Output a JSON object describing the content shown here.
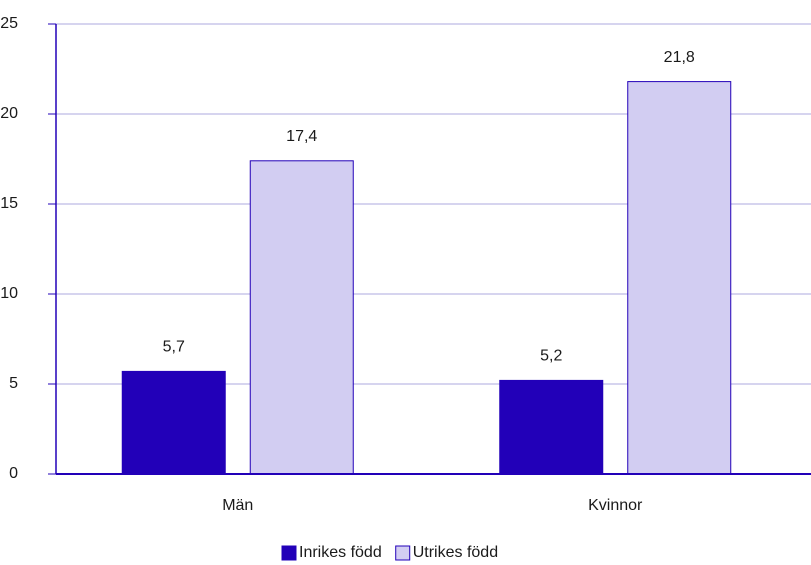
{
  "chart_data": {
    "type": "bar",
    "categories": [
      "Män",
      "Kvinnor"
    ],
    "series": [
      {
        "name": "Inrikes född",
        "color": "#2200b8",
        "values": [
          5.7,
          5.2
        ],
        "value_labels": [
          "5,7",
          "5,2"
        ]
      },
      {
        "name": "Utrikes född",
        "color": "#d2cdf2",
        "values": [
          17.4,
          21.8
        ],
        "value_labels": [
          "17,4",
          "21,8"
        ]
      }
    ],
    "ylim": [
      0,
      25
    ],
    "yticks": [
      0,
      5,
      10,
      15,
      20,
      25
    ],
    "grid": true,
    "legend": "bottom"
  }
}
